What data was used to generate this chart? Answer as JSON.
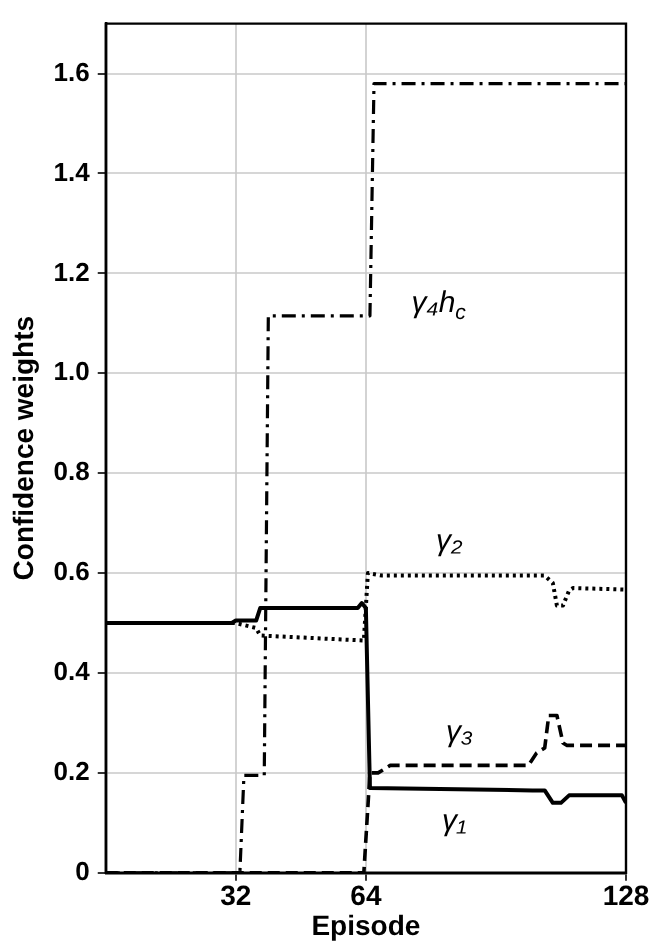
{
  "chart_data": {
    "type": "line",
    "xlabel": "Episode",
    "ylabel": "Confidence weights",
    "xlim": [
      0,
      128
    ],
    "xticks": [
      32,
      64,
      128
    ],
    "ylim": [
      0,
      1.7
    ],
    "yticks": [
      0,
      0.2,
      0.4,
      0.6,
      0.8,
      {
        "value": 1,
        "label": "1.0"
      },
      1.2,
      1.4,
      1.6
    ],
    "grid": true,
    "marker": "none",
    "legend": false,
    "series": [
      {
        "name": "γ₁",
        "color": "#000000",
        "line_style": "solid",
        "x": [
          0,
          31,
          32,
          37,
          38,
          62,
          63,
          64,
          65,
          105,
          108,
          110,
          112,
          114,
          127,
          128
        ],
        "values": [
          0.5,
          0.5,
          0.505,
          0.505,
          0.53,
          0.53,
          0.54,
          0.53,
          0.17,
          0.165,
          0.165,
          0.14,
          0.14,
          0.155,
          0.155,
          0.14
        ]
      },
      {
        "name": "γ₂",
        "color": "#000000",
        "line_style": "dotted",
        "x": [
          0,
          32,
          37,
          38,
          63.5,
          64.5,
          68,
          108,
          110,
          111,
          112.5,
          114,
          115,
          128
        ],
        "values": [
          0.5,
          0.5,
          0.49,
          0.475,
          0.465,
          0.6,
          0.595,
          0.595,
          0.58,
          0.535,
          0.535,
          0.565,
          0.57,
          0.567
        ]
      },
      {
        "name": "γ₃",
        "color": "#000000",
        "line_style": "dashed",
        "x": [
          0,
          63.5,
          65,
          67,
          70,
          104,
          106,
          108,
          109,
          111,
          112.5,
          113.5,
          128
        ],
        "values": [
          0,
          0,
          0.2,
          0.2,
          0.215,
          0.215,
          0.24,
          0.25,
          0.315,
          0.315,
          0.26,
          0.255,
          0.255
        ]
      },
      {
        "name": "γ₄h$_{c}$",
        "color": "#000000",
        "line_style": "dashdot",
        "x": [
          0,
          33,
          34,
          39,
          40,
          65,
          66,
          128
        ],
        "values": [
          0,
          0,
          0.195,
          0.195,
          1.115,
          1.115,
          1.58,
          1.58
        ]
      }
    ]
  }
}
